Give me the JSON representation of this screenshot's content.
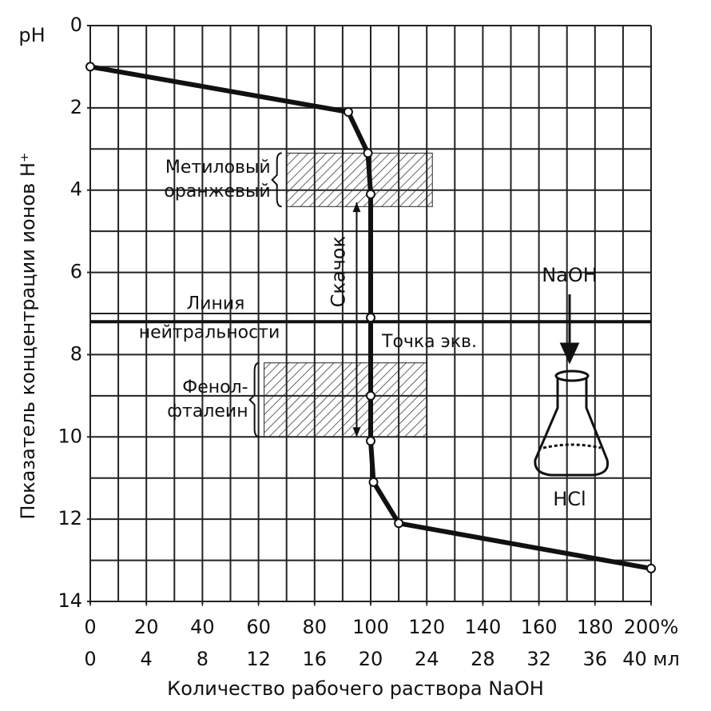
{
  "chart_data": {
    "type": "line",
    "y_axis_label": "pH",
    "y_title": "Показатель концентрации ионов H⁺",
    "x_title": "Количество рабочего раствора NaOH",
    "xlim": [
      0,
      200
    ],
    "xticks": [
      0,
      20,
      40,
      60,
      80,
      100,
      120,
      140,
      160,
      180,
      {
        "value": 200,
        "label": "200%"
      }
    ],
    "x2lim": [
      0,
      40
    ],
    "x2ticks": [
      0,
      4,
      8,
      12,
      16,
      20,
      24,
      28,
      32,
      36,
      {
        "value": 40,
        "label": "40 мл"
      }
    ],
    "ylim": [
      0,
      14
    ],
    "y_inverted": true,
    "yticks": [
      0,
      2,
      4,
      6,
      8,
      10,
      12,
      14
    ],
    "grid": true,
    "grid_step_x": 10,
    "grid_step_y": 1,
    "series": [
      {
        "color": "#111111",
        "x": [
          0,
          92,
          99,
          100,
          100,
          100,
          100,
          101,
          110,
          200
        ],
        "values": [
          1.0,
          2.1,
          3.1,
          4.1,
          7.1,
          9.0,
          10.1,
          11.1,
          12.1,
          13.2
        ]
      }
    ],
    "bands": [
      {
        "label_lines": [
          "Метиловый",
          "оранжевый"
        ],
        "xmin": 70,
        "xmax": 122,
        "ymin": 3.1,
        "ymax": 4.4
      },
      {
        "label_lines": [
          "Фенол-",
          "фталеин"
        ],
        "xmin": 62,
        "xmax": 120,
        "ymin": 8.2,
        "ymax": 10.0
      }
    ],
    "neutral_line": {
      "value": 7.2,
      "label_lines": [
        "Линия",
        "нейтральности"
      ]
    },
    "jump": {
      "label": "Скачок",
      "x": 95,
      "from": 4.3,
      "to": 10.0
    },
    "equivalence_label": "Точка экв.",
    "titrant_label": "NaOH",
    "analyte_label": "HCl"
  }
}
